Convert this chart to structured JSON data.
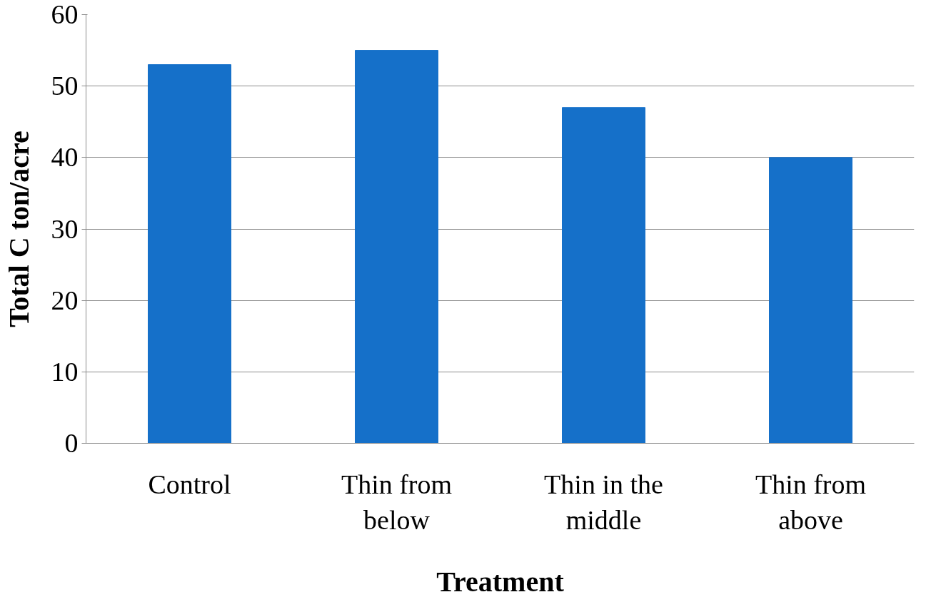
{
  "chart_data": {
    "type": "bar",
    "xlabel": "Treatment",
    "ylabel": "Total C ton/acre",
    "categories": [
      "Control",
      "Thin from below",
      "Thin in the middle",
      "Thin from above"
    ],
    "values": [
      53,
      55,
      47,
      40
    ],
    "color": "#1570c9",
    "ylim": [
      0,
      60
    ],
    "yticks": [
      0,
      10,
      20,
      30,
      40,
      50,
      60
    ],
    "grid": "y"
  }
}
